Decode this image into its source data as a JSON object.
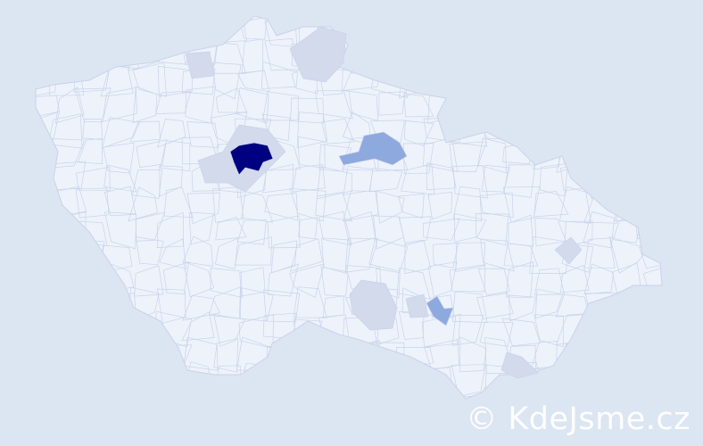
{
  "map": {
    "colors": {
      "background": "#dce5f2",
      "base_region": "#eef2fa",
      "region_border": "#c9d3ea",
      "level_low": "#d2daec",
      "level_mid": "#8ea9de",
      "level_high": "#000080"
    },
    "legend": null
  },
  "watermark": {
    "text": "© KdeJsme.cz"
  }
}
